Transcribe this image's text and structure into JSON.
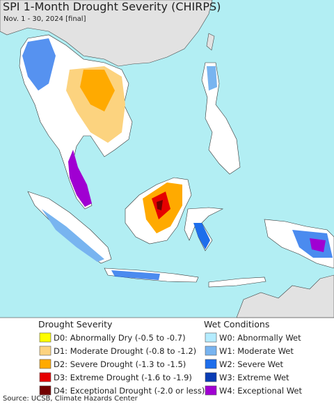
{
  "title": "SPI 1-Month Drought Severity (CHIRPS)",
  "subtitle": "Nov. 1 - 30, 2024 [final]",
  "legend": {
    "drought": {
      "title": "Drought Severity",
      "items": [
        {
          "label": "D0: Abnormally Dry (-0.5 to -0.7)",
          "color": "#ffff00"
        },
        {
          "label": "D1: Moderate Drought (-0.8 to -1.2)",
          "color": "#fcd37f"
        },
        {
          "label": "D2: Severe Drought (-1.3 to -1.5)",
          "color": "#ffaa00"
        },
        {
          "label": "D3: Extreme Drought (-1.6 to -1.9)",
          "color": "#e60000"
        },
        {
          "label": "D4: Exceptional Drought (-2.0 or less)",
          "color": "#730000"
        }
      ]
    },
    "wet": {
      "title": "Wet Conditions",
      "items": [
        {
          "label": "W0: Abnormally Wet",
          "color": "#b4ecff"
        },
        {
          "label": "W1: Moderate Wet",
          "color": "#78b4f0"
        },
        {
          "label": "W2: Severe Wet",
          "color": "#1e6eeb"
        },
        {
          "label": "W3: Extreme Wet",
          "color": "#0a3cb4"
        },
        {
          "label": "W4: Exceptional Wet",
          "color": "#a000d2"
        }
      ]
    }
  },
  "source": "Source: UCSB, Climate Hazards Center"
}
